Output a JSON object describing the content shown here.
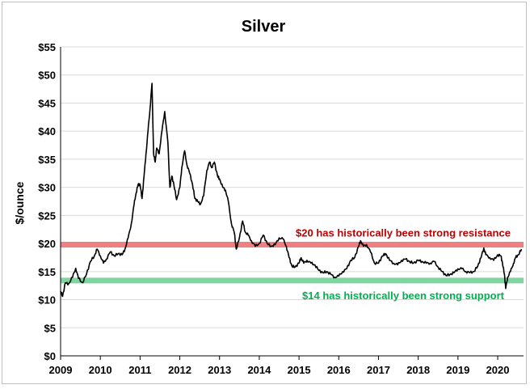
{
  "chart_data": {
    "type": "line",
    "title": "Silver",
    "xlabel": "",
    "ylabel": "$/ounce",
    "xlim": [
      2009,
      2020.65
    ],
    "ylim": [
      0,
      55
    ],
    "x_ticks": [
      "2009",
      "2010",
      "2011",
      "2012",
      "2013",
      "2014",
      "2015",
      "2016",
      "2017",
      "2018",
      "2019",
      "2020"
    ],
    "y_ticks": [
      "$0",
      "$5",
      "$10",
      "$15",
      "$20",
      "$25",
      "$30",
      "$35",
      "$40",
      "$45",
      "$50",
      "$55"
    ],
    "grid": "horizontal",
    "legend": "none",
    "series": [
      {
        "color": "#000000",
        "points": [
          [
            2009.0,
            11.5
          ],
          [
            2009.05,
            10.6
          ],
          [
            2009.12,
            13.0
          ],
          [
            2009.2,
            12.8
          ],
          [
            2009.3,
            14.0
          ],
          [
            2009.38,
            15.6
          ],
          [
            2009.45,
            13.8
          ],
          [
            2009.55,
            13.0
          ],
          [
            2009.65,
            14.5
          ],
          [
            2009.75,
            16.8
          ],
          [
            2009.85,
            17.8
          ],
          [
            2009.92,
            19.0
          ],
          [
            2010.0,
            17.8
          ],
          [
            2010.08,
            16.5
          ],
          [
            2010.15,
            17.2
          ],
          [
            2010.25,
            18.5
          ],
          [
            2010.35,
            17.8
          ],
          [
            2010.45,
            18.2
          ],
          [
            2010.55,
            18.0
          ],
          [
            2010.62,
            19.0
          ],
          [
            2010.7,
            21.0
          ],
          [
            2010.78,
            23.5
          ],
          [
            2010.85,
            27.0
          ],
          [
            2010.9,
            29.0
          ],
          [
            2010.95,
            30.5
          ],
          [
            2011.0,
            30.5
          ],
          [
            2011.05,
            28.0
          ],
          [
            2011.1,
            32.0
          ],
          [
            2011.15,
            36.0
          ],
          [
            2011.2,
            40.0
          ],
          [
            2011.25,
            44.0
          ],
          [
            2011.3,
            48.5
          ],
          [
            2011.34,
            36.0
          ],
          [
            2011.38,
            34.5
          ],
          [
            2011.42,
            37.0
          ],
          [
            2011.48,
            36.0
          ],
          [
            2011.55,
            40.0
          ],
          [
            2011.62,
            43.5
          ],
          [
            2011.7,
            38.0
          ],
          [
            2011.75,
            30.0
          ],
          [
            2011.8,
            32.0
          ],
          [
            2011.85,
            30.5
          ],
          [
            2011.92,
            27.8
          ],
          [
            2012.0,
            30.0
          ],
          [
            2012.05,
            33.5
          ],
          [
            2012.12,
            36.5
          ],
          [
            2012.18,
            34.0
          ],
          [
            2012.25,
            32.5
          ],
          [
            2012.32,
            30.5
          ],
          [
            2012.38,
            28.0
          ],
          [
            2012.45,
            27.5
          ],
          [
            2012.52,
            27.0
          ],
          [
            2012.6,
            28.5
          ],
          [
            2012.68,
            33.0
          ],
          [
            2012.75,
            34.5
          ],
          [
            2012.8,
            33.5
          ],
          [
            2012.87,
            34.5
          ],
          [
            2012.95,
            32.0
          ],
          [
            2013.0,
            31.5
          ],
          [
            2013.08,
            30.0
          ],
          [
            2013.15,
            29.5
          ],
          [
            2013.22,
            27.5
          ],
          [
            2013.3,
            23.5
          ],
          [
            2013.37,
            22.0
          ],
          [
            2013.42,
            19.0
          ],
          [
            2013.5,
            21.0
          ],
          [
            2013.58,
            24.0
          ],
          [
            2013.65,
            22.0
          ],
          [
            2013.72,
            21.5
          ],
          [
            2013.8,
            20.5
          ],
          [
            2013.9,
            19.5
          ],
          [
            2014.0,
            20.0
          ],
          [
            2014.1,
            21.5
          ],
          [
            2014.2,
            20.0
          ],
          [
            2014.3,
            19.5
          ],
          [
            2014.4,
            19.8
          ],
          [
            2014.5,
            21.0
          ],
          [
            2014.6,
            20.8
          ],
          [
            2014.68,
            19.5
          ],
          [
            2014.75,
            17.5
          ],
          [
            2014.82,
            16.0
          ],
          [
            2014.9,
            15.8
          ],
          [
            2015.0,
            16.5
          ],
          [
            2015.05,
            17.5
          ],
          [
            2015.12,
            16.5
          ],
          [
            2015.2,
            17.0
          ],
          [
            2015.3,
            16.5
          ],
          [
            2015.4,
            16.2
          ],
          [
            2015.5,
            15.2
          ],
          [
            2015.6,
            14.8
          ],
          [
            2015.7,
            15.0
          ],
          [
            2015.8,
            14.5
          ],
          [
            2015.9,
            14.0
          ],
          [
            2016.0,
            14.2
          ],
          [
            2016.1,
            15.0
          ],
          [
            2016.2,
            15.5
          ],
          [
            2016.3,
            17.0
          ],
          [
            2016.4,
            17.5
          ],
          [
            2016.5,
            19.5
          ],
          [
            2016.55,
            20.5
          ],
          [
            2016.62,
            19.5
          ],
          [
            2016.7,
            19.8
          ],
          [
            2016.8,
            18.5
          ],
          [
            2016.9,
            16.5
          ],
          [
            2017.0,
            16.5
          ],
          [
            2017.1,
            17.8
          ],
          [
            2017.18,
            18.2
          ],
          [
            2017.28,
            17.0
          ],
          [
            2017.38,
            16.5
          ],
          [
            2017.48,
            16.2
          ],
          [
            2017.58,
            17.0
          ],
          [
            2017.68,
            17.2
          ],
          [
            2017.78,
            16.8
          ],
          [
            2017.88,
            16.5
          ],
          [
            2018.0,
            17.0
          ],
          [
            2018.1,
            16.8
          ],
          [
            2018.2,
            16.5
          ],
          [
            2018.3,
            16.5
          ],
          [
            2018.4,
            16.8
          ],
          [
            2018.5,
            15.8
          ],
          [
            2018.6,
            15.0
          ],
          [
            2018.7,
            14.3
          ],
          [
            2018.8,
            14.5
          ],
          [
            2018.9,
            14.8
          ],
          [
            2019.0,
            15.5
          ],
          [
            2019.1,
            15.5
          ],
          [
            2019.2,
            15.0
          ],
          [
            2019.3,
            14.8
          ],
          [
            2019.4,
            15.0
          ],
          [
            2019.5,
            16.0
          ],
          [
            2019.58,
            17.5
          ],
          [
            2019.65,
            19.2
          ],
          [
            2019.7,
            18.0
          ],
          [
            2019.8,
            17.5
          ],
          [
            2019.9,
            17.0
          ],
          [
            2020.0,
            18.0
          ],
          [
            2020.08,
            17.8
          ],
          [
            2020.12,
            16.5
          ],
          [
            2020.17,
            14.5
          ],
          [
            2020.2,
            12.0
          ],
          [
            2020.25,
            14.0
          ],
          [
            2020.32,
            15.0
          ],
          [
            2020.4,
            16.5
          ],
          [
            2020.45,
            17.5
          ],
          [
            2020.52,
            18.0
          ],
          [
            2020.6,
            19.0
          ]
        ]
      }
    ],
    "reference_bands": [
      {
        "value": 19.8,
        "color": "#f08080",
        "label": "$20 has historically been strong resistance",
        "label_color": "#c00000"
      },
      {
        "value": 13.4,
        "color": "#7fd4a0",
        "label": "$14 has historically been strong support",
        "label_color": "#00b050"
      }
    ]
  }
}
